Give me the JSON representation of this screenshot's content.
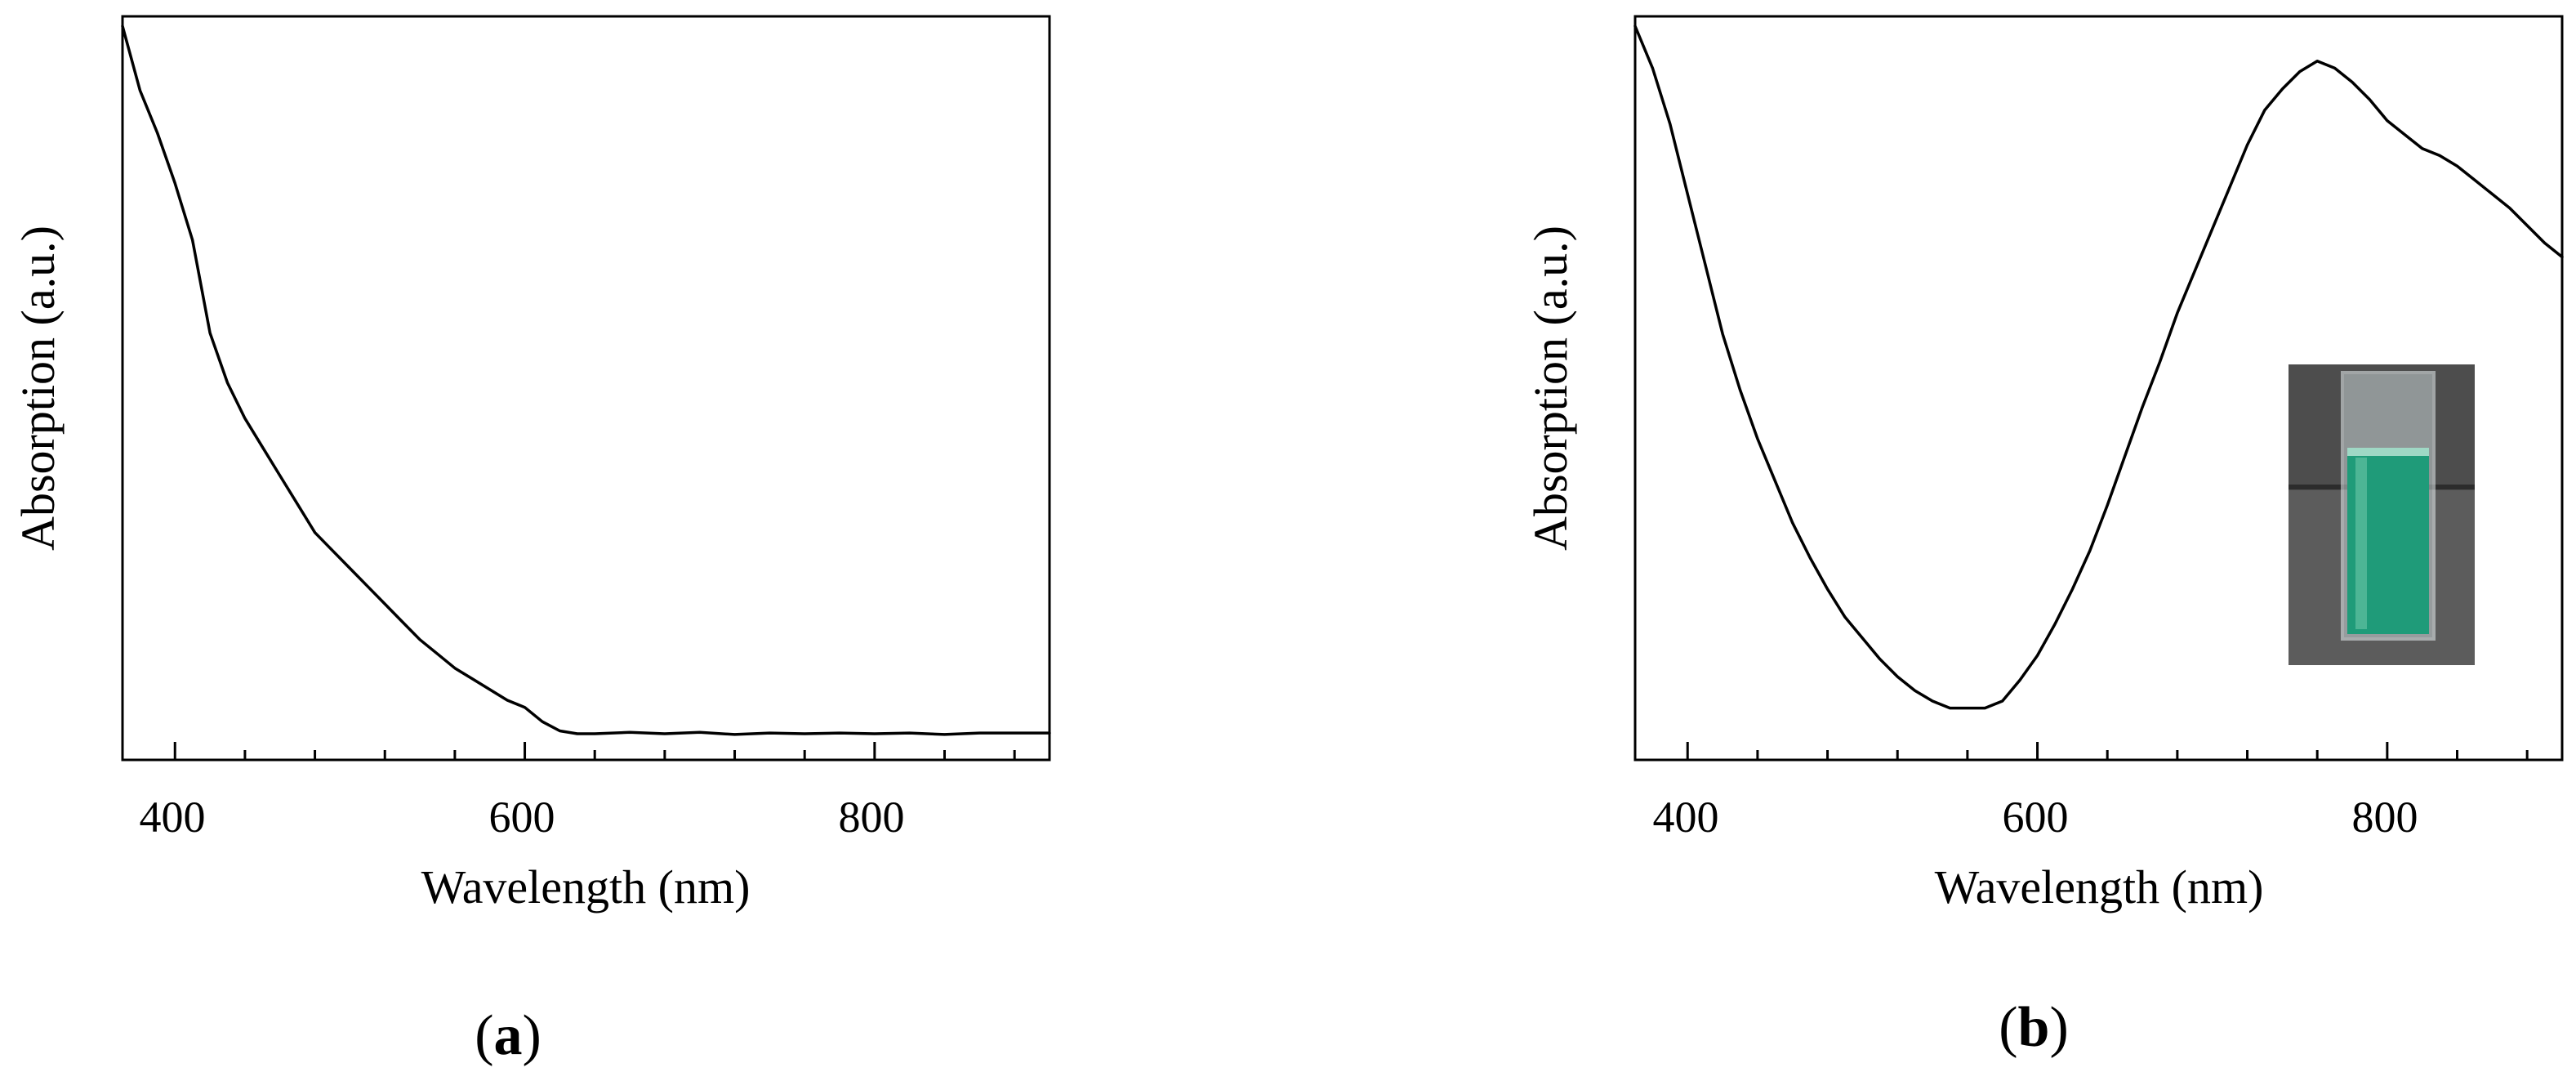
{
  "chart_data": [
    {
      "type": "line",
      "panel_label": "a",
      "xlabel": "Wavelength (nm)",
      "ylabel": "Absorption (a.u.)",
      "xlim": [
        370,
        900
      ],
      "ylim": [
        0,
        1
      ],
      "yticks_shown": false,
      "xticks_major": [
        400,
        600,
        800
      ],
      "xticks_minor": [
        440,
        480,
        520,
        560,
        640,
        680,
        720,
        760,
        840,
        880
      ],
      "xtick_labels": [
        "400",
        "600",
        "800"
      ],
      "series": [
        {
          "x": [
            370,
            380,
            390,
            400,
            410,
            420,
            430,
            440,
            450,
            460,
            470,
            480,
            490,
            500,
            510,
            520,
            530,
            540,
            550,
            560,
            570,
            580,
            590,
            600,
            610,
            620,
            630,
            640,
            660,
            680,
            700,
            720,
            740,
            760,
            780,
            800,
            820,
            840,
            860,
            880,
            900
          ],
          "y": [
            1.0,
            0.91,
            0.85,
            0.78,
            0.7,
            0.57,
            0.5,
            0.45,
            0.41,
            0.37,
            0.33,
            0.29,
            0.265,
            0.24,
            0.215,
            0.19,
            0.165,
            0.14,
            0.12,
            0.1,
            0.085,
            0.07,
            0.055,
            0.045,
            0.025,
            0.012,
            0.008,
            0.008,
            0.01,
            0.008,
            0.01,
            0.007,
            0.009,
            0.008,
            0.009,
            0.008,
            0.009,
            0.007,
            0.009,
            0.009,
            0.009
          ]
        }
      ]
    },
    {
      "type": "line",
      "panel_label": "b",
      "xlabel": "Wavelength (nm)",
      "ylabel": "Absorption (a.u.)",
      "xlim": [
        370,
        900
      ],
      "ylim": [
        0,
        1
      ],
      "yticks_shown": false,
      "xticks_major": [
        400,
        600,
        800
      ],
      "xticks_minor": [
        440,
        480,
        520,
        560,
        640,
        680,
        720,
        760,
        840,
        880
      ],
      "xtick_labels": [
        "400",
        "600",
        "800"
      ],
      "inset_image": "photo of cuvette containing green solution",
      "series": [
        {
          "x": [
            370,
            380,
            390,
            400,
            410,
            420,
            430,
            440,
            450,
            460,
            470,
            480,
            490,
            500,
            510,
            520,
            530,
            540,
            550,
            560,
            570,
            580,
            590,
            600,
            610,
            620,
            630,
            640,
            650,
            660,
            670,
            680,
            690,
            700,
            710,
            720,
            730,
            740,
            750,
            760,
            770,
            780,
            790,
            800,
            810,
            820,
            830,
            840,
            850,
            860,
            870,
            880,
            890,
            900
          ],
          "y": [
            1.0,
            0.94,
            0.86,
            0.76,
            0.66,
            0.56,
            0.48,
            0.41,
            0.35,
            0.29,
            0.24,
            0.195,
            0.155,
            0.125,
            0.095,
            0.07,
            0.05,
            0.035,
            0.025,
            0.025,
            0.025,
            0.035,
            0.065,
            0.1,
            0.145,
            0.195,
            0.25,
            0.315,
            0.385,
            0.455,
            0.52,
            0.59,
            0.65,
            0.71,
            0.77,
            0.83,
            0.88,
            0.91,
            0.935,
            0.95,
            0.94,
            0.92,
            0.895,
            0.865,
            0.845,
            0.825,
            0.815,
            0.8,
            0.78,
            0.76,
            0.74,
            0.715,
            0.69,
            0.67
          ]
        }
      ]
    }
  ],
  "panel_a": {
    "ylabel": "Absorption (a.u.)",
    "xlabel": "Wavelength (nm)",
    "ticks": [
      "400",
      "600",
      "800"
    ],
    "panel_label_open": "(",
    "panel_label_letter": "a",
    "panel_label_close": ")"
  },
  "panel_b": {
    "ylabel": "Absorption (a.u.)",
    "xlabel": "Wavelength (nm)",
    "ticks": [
      "400",
      "600",
      "800"
    ],
    "panel_label_open": "(",
    "panel_label_letter": "b",
    "panel_label_close": ")"
  },
  "colors": {
    "line": "#000000",
    "frame": "#000000",
    "inset_background": "#4a4a4a",
    "inset_liquid": "#1f9a78",
    "inset_glass": "#c9d4d6"
  }
}
